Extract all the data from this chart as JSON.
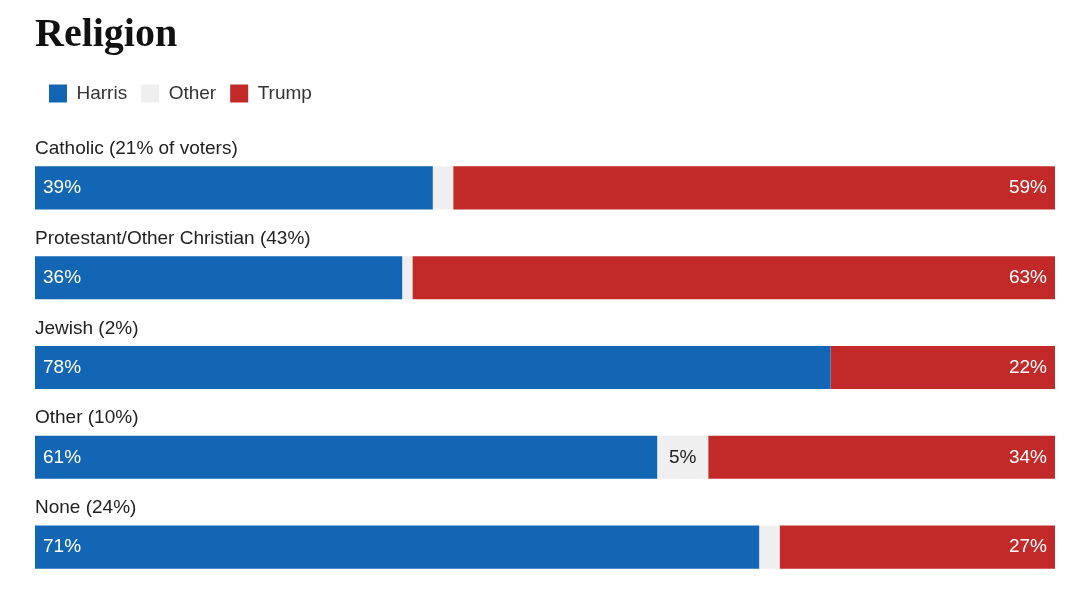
{
  "chart_data": {
    "type": "bar",
    "title": "Religion",
    "orientation": "horizontal",
    "stacked": true,
    "categories": [
      "Catholic (21% of voters)",
      "Protestant/Other Christian (43%)",
      "Jewish (2%)",
      "Other (10%)",
      "None (24%)"
    ],
    "series": [
      {
        "name": "Harris",
        "color": "#1366b3",
        "values": [
          39,
          36,
          78,
          61,
          71
        ],
        "value_labels": [
          "39%",
          "36%",
          "78%",
          "61%",
          "71%"
        ]
      },
      {
        "name": "Other",
        "color": "#efefef",
        "values": [
          2,
          1,
          0,
          5,
          2
        ],
        "value_labels": [
          null,
          null,
          null,
          "5%",
          null
        ]
      },
      {
        "name": "Trump",
        "color": "#c12a28",
        "values": [
          59,
          63,
          22,
          34,
          27
        ],
        "value_labels": [
          "59%",
          "63%",
          "22%",
          "34%",
          "27%"
        ]
      }
    ],
    "xlim": [
      0,
      100
    ],
    "legend": "top left",
    "tick_labels": "y"
  }
}
